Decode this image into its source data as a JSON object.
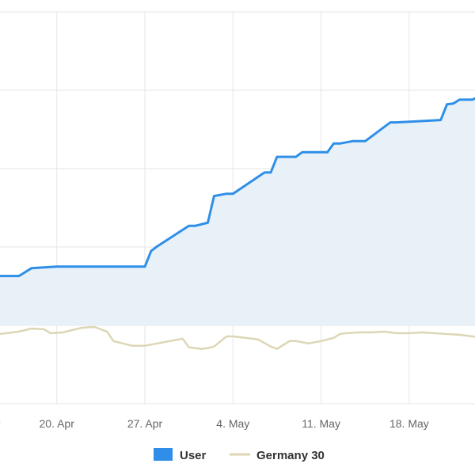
{
  "chart_data": {
    "type": "line",
    "title": "",
    "xlabel": "",
    "ylabel": "",
    "x_ticks": [
      "pr",
      "20. Apr",
      "27. Apr",
      "4. May",
      "11. May",
      "18. May"
    ],
    "ylim": [
      -100,
      400
    ],
    "grid": true,
    "legend_position": "bottom-center",
    "series": [
      {
        "name": "User",
        "style": "step-area",
        "color": "#2f8fe8",
        "fill": "#e9f1f8",
        "x": [
          13.0,
          17.0,
          18.0,
          20.0,
          27.0,
          27.5,
          28.0,
          30.5,
          31.0,
          32.0,
          32.5,
          33.5,
          34.0,
          36.5,
          37.0,
          37.5,
          38.0,
          39.0,
          39.5,
          41.5,
          42.0,
          42.5,
          43.5,
          44.5,
          46.5,
          47.0,
          50.5,
          51.0,
          51.5,
          52.0,
          53.0,
          53.5,
          54.5,
          55.0
        ],
        "values": [
          63,
          63,
          73,
          75,
          75,
          95,
          101,
          127,
          127,
          131,
          165,
          168,
          168,
          195,
          195,
          215,
          215,
          215,
          221,
          221,
          232,
          232,
          235,
          235,
          259,
          259,
          262,
          282,
          283,
          288,
          288,
          291,
          291,
          291
        ]
      },
      {
        "name": "Germany 30",
        "style": "line",
        "color": "#ddd6b5",
        "x": [
          13.0,
          14.0,
          15.0,
          16.0,
          17.0,
          18.0,
          19.0,
          19.5,
          20.5,
          21.0,
          22.0,
          23.0,
          24.0,
          24.5,
          25.5,
          26.0,
          27.0,
          28.0,
          29.0,
          30.0,
          30.5,
          31.5,
          32.0,
          32.5,
          33.5,
          34.0,
          35.0,
          36.0,
          37.0,
          37.5,
          38.5,
          39.0,
          40.0,
          41.0,
          42.0,
          42.5,
          43.0,
          44.0,
          45.0,
          46.0,
          46.5,
          47.0,
          47.5,
          48.0,
          49.0,
          50.0,
          51.0,
          52.0,
          52.5,
          53.0,
          54.0,
          55.0
        ],
        "values": [
          5,
          -15,
          -12,
          -10,
          -8,
          -4,
          -5,
          -10,
          -9,
          -7,
          -3,
          -2,
          -8,
          -20,
          -24,
          -26,
          -26,
          -23,
          -20,
          -17,
          -28,
          -30,
          -29,
          -27,
          -14,
          -14,
          -16,
          -18,
          -27,
          -30,
          -20,
          -20,
          -23,
          -20,
          -16,
          -11,
          -10,
          -9,
          -9,
          -8,
          -9,
          -10,
          -10,
          -10,
          -9,
          -10,
          -11,
          -12,
          -13,
          -14,
          -15,
          -13
        ]
      }
    ]
  }
}
